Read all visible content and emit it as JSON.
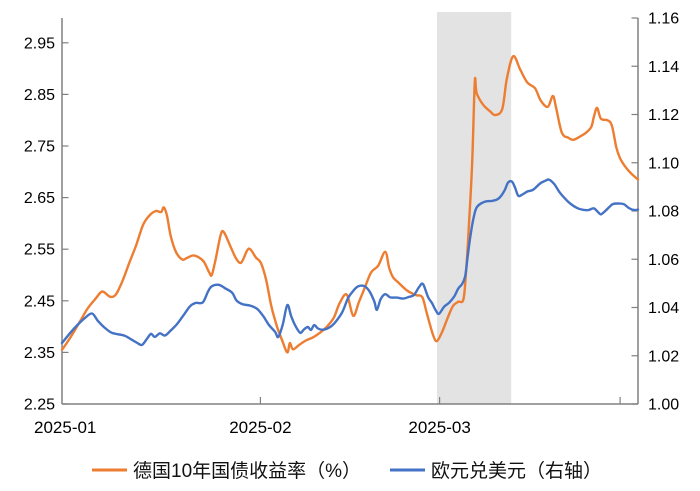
{
  "chart_data": {
    "type": "line",
    "title": "",
    "legend_position": "bottom",
    "grid": false,
    "x_axis": {
      "tick_labels": [
        {
          "label": "2025-01",
          "day": 0.5
        },
        {
          "label": "2025-02",
          "day": 31
        },
        {
          "label": "2025-03",
          "day": 59
        }
      ],
      "minor_tick_days": [
        31,
        59,
        87.2
      ],
      "range_days": [
        0,
        90
      ]
    },
    "y_axis_left": {
      "tick_labels": [
        "2.25",
        "2.35",
        "2.45",
        "2.55",
        "2.65",
        "2.75",
        "2.85",
        "2.95"
      ],
      "tick_values": [
        2.25,
        2.35,
        2.45,
        2.55,
        2.65,
        2.75,
        2.85,
        2.95
      ],
      "range": [
        2.25,
        3.0
      ]
    },
    "y_axis_right": {
      "tick_labels": [
        "1.00",
        "1.02",
        "1.04",
        "1.06",
        "1.08",
        "1.10",
        "1.12",
        "1.14",
        "1.16"
      ],
      "tick_values": [
        1.0,
        1.02,
        1.04,
        1.06,
        1.08,
        1.1,
        1.12,
        1.14,
        1.16
      ],
      "range": [
        1.0,
        1.16
      ]
    },
    "highlight_band": {
      "date_start": "2025-03-01",
      "date_end": "2025-03-12",
      "day_start": 58.6,
      "day_end": 70.2,
      "color": "#e3e3e3"
    },
    "colors": {
      "axis": "#808080",
      "text": "#000000",
      "bund": "#ED7D31",
      "eurusd": "#4472C4"
    },
    "series": [
      {
        "name": "德国10年国债收益率（%）",
        "axis": "left",
        "color": "#ED7D31",
        "points": [
          [
            0,
            2.355
          ],
          [
            1,
            2.373
          ],
          [
            2,
            2.393
          ],
          [
            3,
            2.414
          ],
          [
            4,
            2.435
          ],
          [
            5.3,
            2.455
          ],
          [
            6.3,
            2.468
          ],
          [
            7.5,
            2.458
          ],
          [
            8.4,
            2.462
          ],
          [
            9.4,
            2.487
          ],
          [
            10.5,
            2.523
          ],
          [
            11.6,
            2.558
          ],
          [
            12.7,
            2.598
          ],
          [
            13.8,
            2.617
          ],
          [
            14.7,
            2.624
          ],
          [
            15.5,
            2.622
          ],
          [
            15.9,
            2.631
          ],
          [
            16.4,
            2.615
          ],
          [
            17,
            2.575
          ],
          [
            17.8,
            2.545
          ],
          [
            18.8,
            2.53
          ],
          [
            19.5,
            2.533
          ],
          [
            20.5,
            2.538
          ],
          [
            21.4,
            2.534
          ],
          [
            22.2,
            2.525
          ],
          [
            23,
            2.505
          ],
          [
            23.4,
            2.5
          ],
          [
            24,
            2.53
          ],
          [
            24.8,
            2.578
          ],
          [
            25.3,
            2.583
          ],
          [
            26.3,
            2.556
          ],
          [
            27.2,
            2.532
          ],
          [
            28,
            2.524
          ],
          [
            28.9,
            2.547
          ],
          [
            29.4,
            2.55
          ],
          [
            30.3,
            2.534
          ],
          [
            31.1,
            2.523
          ],
          [
            31.9,
            2.49
          ],
          [
            32.7,
            2.44
          ],
          [
            33.6,
            2.4
          ],
          [
            34.4,
            2.373
          ],
          [
            35.2,
            2.35
          ],
          [
            35.6,
            2.368
          ],
          [
            36.1,
            2.356
          ],
          [
            37,
            2.364
          ],
          [
            38.1,
            2.373
          ],
          [
            39.2,
            2.379
          ],
          [
            40.3,
            2.388
          ],
          [
            41.4,
            2.4
          ],
          [
            42.5,
            2.418
          ],
          [
            43.4,
            2.446
          ],
          [
            44.5,
            2.462
          ],
          [
            45.5,
            2.421
          ],
          [
            46.4,
            2.448
          ],
          [
            47.3,
            2.475
          ],
          [
            48.3,
            2.505
          ],
          [
            49.4,
            2.518
          ],
          [
            50.5,
            2.545
          ],
          [
            51.1,
            2.515
          ],
          [
            51.7,
            2.496
          ],
          [
            52.5,
            2.486
          ],
          [
            53.9,
            2.47
          ],
          [
            55.3,
            2.461
          ],
          [
            56.3,
            2.457
          ],
          [
            57,
            2.426
          ],
          [
            58,
            2.383
          ],
          [
            58.6,
            2.372
          ],
          [
            59.4,
            2.39
          ],
          [
            60.3,
            2.418
          ],
          [
            61.1,
            2.44
          ],
          [
            61.9,
            2.448
          ],
          [
            62.7,
            2.452
          ],
          [
            63.1,
            2.5
          ],
          [
            63.6,
            2.6
          ],
          [
            64.1,
            2.72
          ],
          [
            64.5,
            2.875
          ],
          [
            64.8,
            2.852
          ],
          [
            65.8,
            2.83
          ],
          [
            66.9,
            2.817
          ],
          [
            67.7,
            2.81
          ],
          [
            68.8,
            2.822
          ],
          [
            69.5,
            2.88
          ],
          [
            70.5,
            2.924
          ],
          [
            71.6,
            2.898
          ],
          [
            72.7,
            2.873
          ],
          [
            73.9,
            2.862
          ],
          [
            74.8,
            2.838
          ],
          [
            75.9,
            2.826
          ],
          [
            76.7,
            2.847
          ],
          [
            77.2,
            2.824
          ],
          [
            78.1,
            2.776
          ],
          [
            79.1,
            2.766
          ],
          [
            79.9,
            2.762
          ],
          [
            80.9,
            2.768
          ],
          [
            81.9,
            2.776
          ],
          [
            82.7,
            2.787
          ],
          [
            83.1,
            2.806
          ],
          [
            83.6,
            2.824
          ],
          [
            84.2,
            2.803
          ],
          [
            85.2,
            2.8
          ],
          [
            85.9,
            2.79
          ],
          [
            86.6,
            2.748
          ],
          [
            87.2,
            2.726
          ],
          [
            88,
            2.71
          ],
          [
            88.9,
            2.697
          ],
          [
            90,
            2.685
          ]
        ]
      },
      {
        "name": "欧元兑美元（右轴）",
        "axis": "right",
        "color": "#4472C4",
        "points": [
          [
            0,
            1.0253
          ],
          [
            1.3,
            1.0295
          ],
          [
            2.5,
            1.033
          ],
          [
            3.6,
            1.0357
          ],
          [
            4.7,
            1.0375
          ],
          [
            5.6,
            1.0345
          ],
          [
            6.6,
            1.0318
          ],
          [
            7.7,
            1.0296
          ],
          [
            8.8,
            1.0289
          ],
          [
            9.8,
            1.0283
          ],
          [
            10.8,
            1.0268
          ],
          [
            11.7,
            1.0254
          ],
          [
            12.5,
            1.0245
          ],
          [
            13.3,
            1.0271
          ],
          [
            13.9,
            1.0291
          ],
          [
            14.5,
            1.0278
          ],
          [
            15.3,
            1.0293
          ],
          [
            16.1,
            1.0284
          ],
          [
            17,
            1.0305
          ],
          [
            18,
            1.0332
          ],
          [
            19.1,
            1.0372
          ],
          [
            20,
            1.0405
          ],
          [
            20.9,
            1.0419
          ],
          [
            22,
            1.0421
          ],
          [
            22.8,
            1.0465
          ],
          [
            23.4,
            1.0488
          ],
          [
            24.5,
            1.0494
          ],
          [
            25.6,
            1.0478
          ],
          [
            26.6,
            1.0461
          ],
          [
            27.3,
            1.0428
          ],
          [
            28.3,
            1.0413
          ],
          [
            29.4,
            1.0408
          ],
          [
            30.5,
            1.0394
          ],
          [
            31.4,
            1.0366
          ],
          [
            32.3,
            1.0329
          ],
          [
            33.3,
            1.0299
          ],
          [
            33.8,
            1.0278
          ],
          [
            34.5,
            1.033
          ],
          [
            35.2,
            1.041
          ],
          [
            35.8,
            1.0365
          ],
          [
            36.4,
            1.0327
          ],
          [
            37.2,
            1.0295
          ],
          [
            37.8,
            1.0309
          ],
          [
            38.4,
            1.0319
          ],
          [
            38.9,
            1.0307
          ],
          [
            39.4,
            1.0327
          ],
          [
            40,
            1.0313
          ],
          [
            40.8,
            1.0308
          ],
          [
            41.9,
            1.0319
          ],
          [
            42.8,
            1.0342
          ],
          [
            43.8,
            1.0381
          ],
          [
            44.7,
            1.0439
          ],
          [
            45.5,
            1.0469
          ],
          [
            46.3,
            1.0488
          ],
          [
            47.3,
            1.0488
          ],
          [
            48.1,
            1.0465
          ],
          [
            48.8,
            1.0425
          ],
          [
            49.2,
            1.039
          ],
          [
            49.8,
            1.0435
          ],
          [
            50.5,
            1.0455
          ],
          [
            51.3,
            1.0442
          ],
          [
            52.3,
            1.0441
          ],
          [
            53.3,
            1.0437
          ],
          [
            54.2,
            1.0444
          ],
          [
            55,
            1.0452
          ],
          [
            55.8,
            1.0485
          ],
          [
            56.4,
            1.0497
          ],
          [
            57.2,
            1.0443
          ],
          [
            57.8,
            1.0419
          ],
          [
            58.4,
            1.0388
          ],
          [
            58.9,
            1.0374
          ],
          [
            59.7,
            1.0403
          ],
          [
            60.5,
            1.042
          ],
          [
            61.3,
            1.0446
          ],
          [
            61.9,
            1.0478
          ],
          [
            62.5,
            1.0497
          ],
          [
            63,
            1.053
          ],
          [
            63.4,
            1.0615
          ],
          [
            63.9,
            1.0712
          ],
          [
            64.4,
            1.0783
          ],
          [
            64.8,
            1.0815
          ],
          [
            65.5,
            1.0832
          ],
          [
            66.3,
            1.084
          ],
          [
            67.2,
            1.0842
          ],
          [
            68,
            1.0848
          ],
          [
            68.6,
            1.0862
          ],
          [
            69.2,
            1.0888
          ],
          [
            69.7,
            1.0918
          ],
          [
            70.3,
            1.0922
          ],
          [
            70.8,
            1.0896
          ],
          [
            71.3,
            1.0863
          ],
          [
            71.9,
            1.0868
          ],
          [
            72.7,
            1.0881
          ],
          [
            73.6,
            1.0888
          ],
          [
            74.7,
            1.0914
          ],
          [
            75.5,
            1.0925
          ],
          [
            76.1,
            1.093
          ],
          [
            76.9,
            1.0912
          ],
          [
            77.8,
            1.0876
          ],
          [
            78.8,
            1.0846
          ],
          [
            79.5,
            1.0829
          ],
          [
            80.5,
            1.0812
          ],
          [
            81.4,
            1.0805
          ],
          [
            82.3,
            1.0804
          ],
          [
            83.1,
            1.0811
          ],
          [
            83.8,
            1.0794
          ],
          [
            84.2,
            1.0786
          ],
          [
            84.8,
            1.0798
          ],
          [
            85.5,
            1.0816
          ],
          [
            86.1,
            1.0829
          ],
          [
            87,
            1.0831
          ],
          [
            87.8,
            1.0828
          ],
          [
            88.6,
            1.0812
          ],
          [
            89.4,
            1.0804
          ],
          [
            90,
            1.0806
          ]
        ]
      }
    ]
  }
}
